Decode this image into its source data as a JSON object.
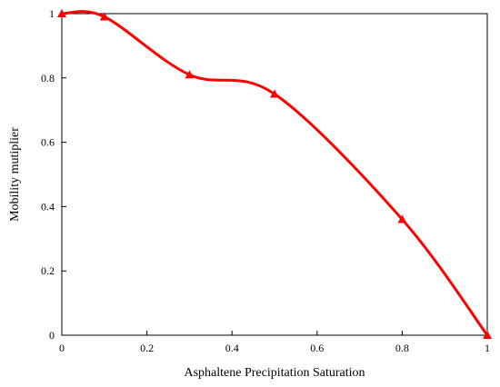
{
  "chart_data": {
    "type": "line",
    "xlabel": "Asphaltene Precipitation Saturation",
    "ylabel": "Mobility mutiplier",
    "xlim": [
      0,
      1
    ],
    "ylim": [
      0,
      1
    ],
    "x_ticks": [
      "0",
      "0.2",
      "0.4",
      "0.6",
      "0.8",
      "1"
    ],
    "y_ticks": [
      "0",
      "0.2",
      "0.4",
      "0.6",
      "0.8",
      "1"
    ],
    "grid": false,
    "legend": "none",
    "series": [
      {
        "color": "#ff0000",
        "marker": "triangle",
        "smooth": true,
        "x": [
          0,
          0.1,
          0.3,
          0.5,
          0.8,
          1.0
        ],
        "y": [
          1.0,
          0.99,
          0.81,
          0.75,
          0.36,
          0.0
        ]
      }
    ]
  }
}
